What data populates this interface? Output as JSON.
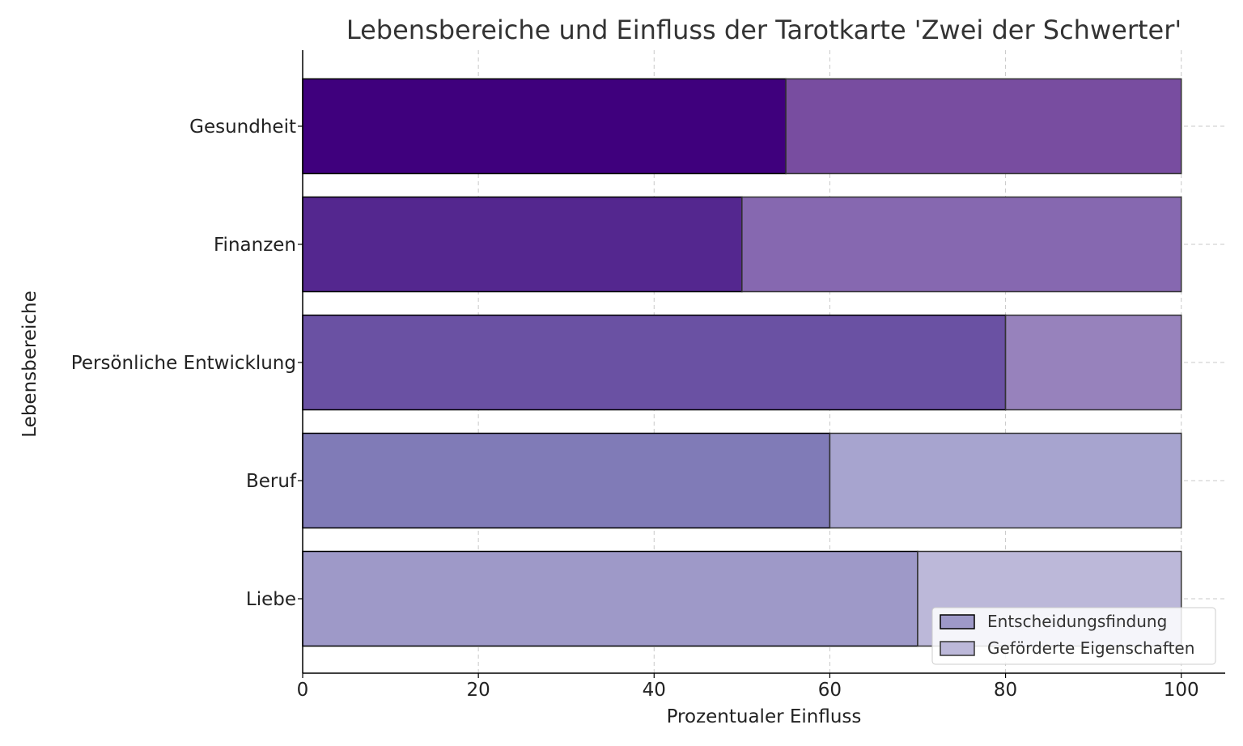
{
  "chart_data": {
    "type": "bar",
    "orientation": "horizontal",
    "stacked": true,
    "title": "Lebensbereiche und Einfluss der Tarotkarte 'Zwei der Schwerter'",
    "xlabel": "Prozentualer Einfluss",
    "ylabel": "Lebensbereiche",
    "xlim": [
      0,
      105
    ],
    "xticks": [
      0,
      20,
      40,
      60,
      80,
      100
    ],
    "grid": true,
    "legend_position": "lower-right",
    "categories": [
      "Liebe",
      "Beruf",
      "Persönliche Entwicklung",
      "Finanzen",
      "Gesundheit"
    ],
    "series": [
      {
        "name": "Entscheidungsfindung",
        "values": [
          70,
          60,
          80,
          50,
          55
        ],
        "colors": [
          "#9e99c8",
          "#807bb7",
          "#6a51a3",
          "#54278f",
          "#3f007d"
        ]
      },
      {
        "name": "Geförderte Eigenschaften",
        "values": [
          30,
          40,
          20,
          50,
          45
        ],
        "colors": [
          "#bcb8d9",
          "#a7a4cf",
          "#9782bc",
          "#8668b0",
          "#784da0"
        ]
      }
    ],
    "legend_swatch_colors": [
      "#9e99c8",
      "#bcb8d9"
    ]
  }
}
